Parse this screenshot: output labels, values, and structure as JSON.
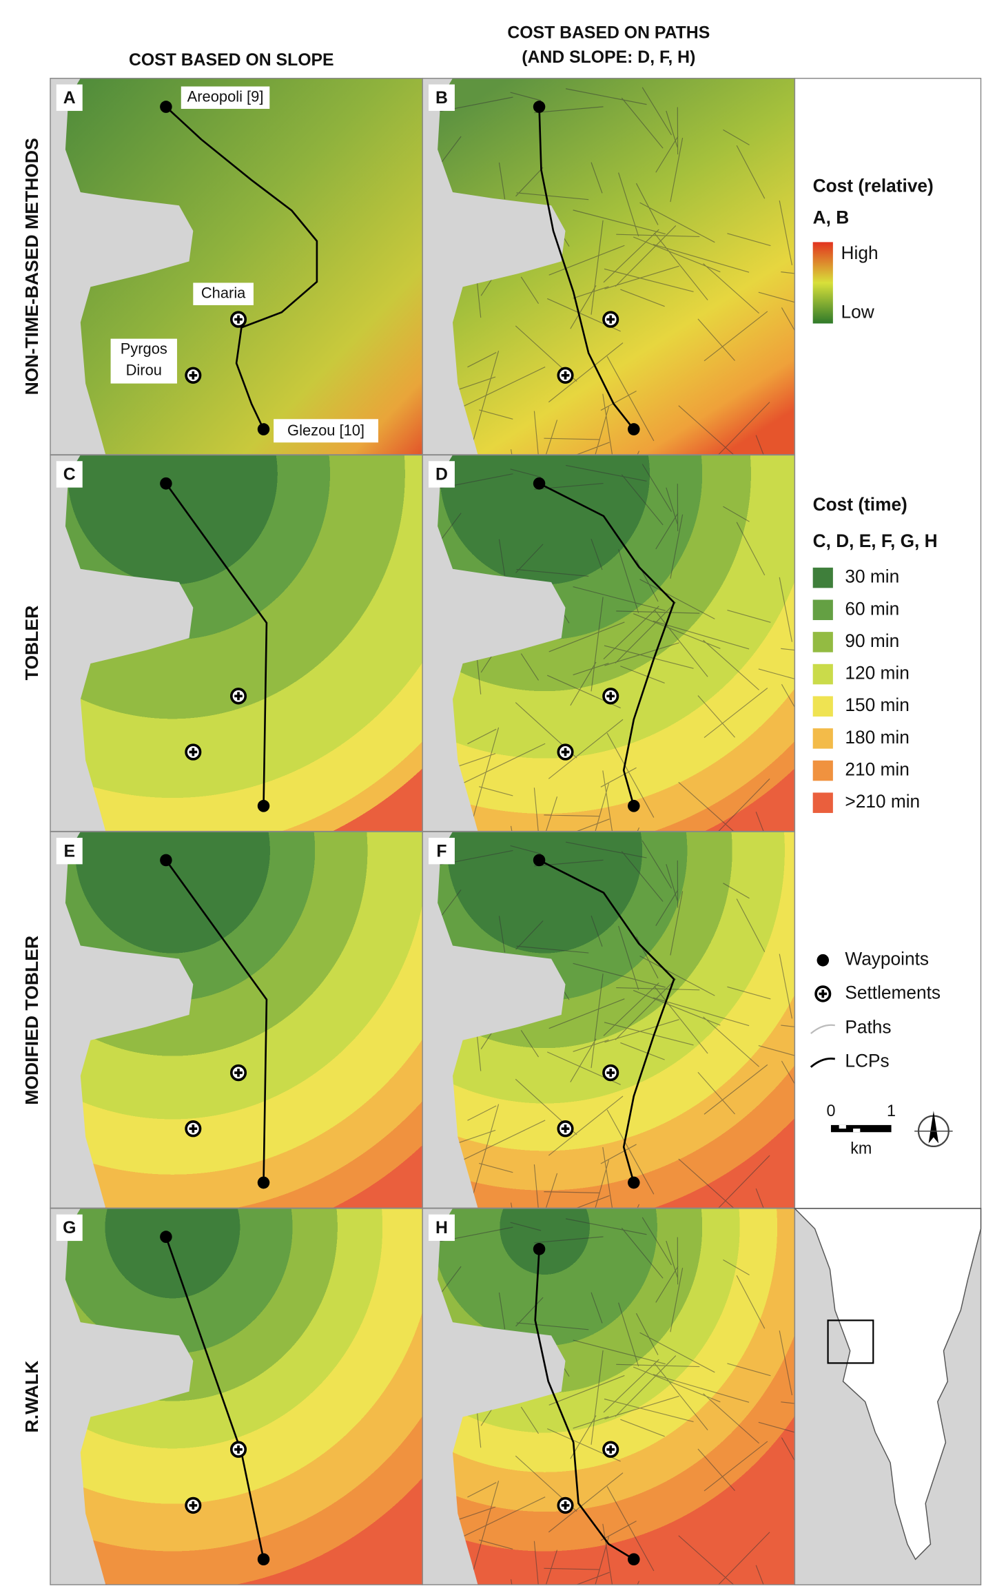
{
  "column_headers": [
    "COST BASED ON SLOPE",
    "COST BASED ON PATHS",
    "(AND SLOPE: D, F, H)"
  ],
  "row_labels": [
    "NON-TIME-BASED METHODS",
    "TOBLER",
    "MODIFIED TOBLER",
    "R.WALK"
  ],
  "panels": [
    "A",
    "B",
    "C",
    "D",
    "E",
    "F",
    "G",
    "H"
  ],
  "place_labels": [
    "Areopoli [9]",
    "Charia",
    "Pyrgos",
    "Dirou",
    "Glezou [10]"
  ],
  "legend": {
    "relative_title": "Cost (relative)",
    "relative_panels": "A, B",
    "high": "High",
    "low": "Low",
    "time_title": "Cost (time)",
    "time_panels": "C, D, E, F, G, H",
    "time_classes": [
      "30 min",
      "60 min",
      "90 min",
      "120 min",
      "150 min",
      "180 min",
      "210 min",
      ">210 min"
    ],
    "time_colors": [
      "#3f7f3b",
      "#64a043",
      "#93bb42",
      "#cadb4a",
      "#efe352",
      "#f3bb49",
      "#f0923f",
      "#ea5f3d"
    ],
    "symbols": [
      "Waypoints",
      "Settlements",
      "Paths",
      "LCPs"
    ],
    "scale": {
      "start": "0",
      "end": "1",
      "unit": "km"
    }
  }
}
